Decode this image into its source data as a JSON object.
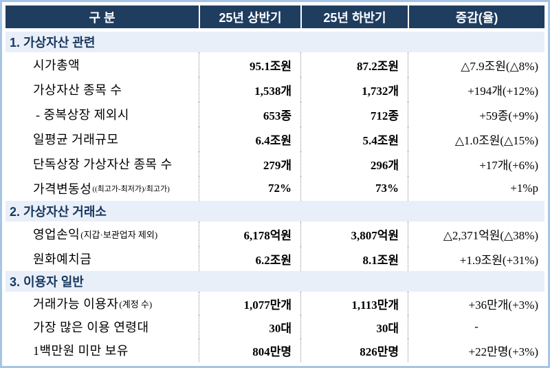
{
  "colors": {
    "header_bg": "#1f3d5f",
    "header_text": "#ffffff",
    "section_bg": "#e9eff8",
    "section_text": "#17375e",
    "frame_border": "#a6c5e5",
    "divider_dotted": "#8c8c8c"
  },
  "table": {
    "columns": [
      {
        "label": "구 분"
      },
      {
        "label": "25년 상반기"
      },
      {
        "label": "25년 하반기"
      },
      {
        "label": "증감(율)"
      }
    ],
    "sections": [
      {
        "title": "1. 가상자산 관련",
        "rows": [
          {
            "label": "시가총액",
            "h1": "95.1조원",
            "h2": "87.2조원",
            "change": "△7.9조원(△8%)"
          },
          {
            "label": "가상자산 종목 수",
            "h1": "1,538개",
            "h2": "1,732개",
            "change": "+194개(+12%)"
          },
          {
            "label": "- 중복상장 제외시",
            "h1": "653종",
            "h2": "712종",
            "change": "+59종(+9%)"
          },
          {
            "label": "일평균 거래규모",
            "h1": "6.4조원",
            "h2": "5.4조원",
            "change": "△1.0조원(△15%)"
          },
          {
            "label": "단독상장 가상자산 종목 수",
            "h1": "279개",
            "h2": "296개",
            "change": "+17개(+6%)"
          },
          {
            "label": "가격변동성",
            "note": "((최고가-최저가)/최고가)",
            "h1": "72%",
            "h2": "73%",
            "change": "+1%p"
          }
        ]
      },
      {
        "title": "2. 가상자산 거래소",
        "rows": [
          {
            "label": "영업손익",
            "note": "(지갑·보관업자 제외)",
            "h1": "6,178억원",
            "h2": "3,807억원",
            "change": "△2,371억원(△38%)"
          },
          {
            "label": "원화예치금",
            "h1": "6.2조원",
            "h2": "8.1조원",
            "change": "+1.9조원(+31%)"
          }
        ]
      },
      {
        "title": "3. 이용자 일반",
        "rows": [
          {
            "label": "거래가능 이용자",
            "note": "(계정 수)",
            "h1": "1,077만개",
            "h2": "1,113만개",
            "change": "+36만개(+3%)"
          },
          {
            "label": "가장 많은 이용 연령대",
            "h1": "30대",
            "h2": "30대",
            "change": "-"
          },
          {
            "label": "1백만원 미만 보유",
            "h1": "804만명",
            "h2": "826만명",
            "change": "+22만명(+3%)"
          }
        ]
      }
    ]
  }
}
